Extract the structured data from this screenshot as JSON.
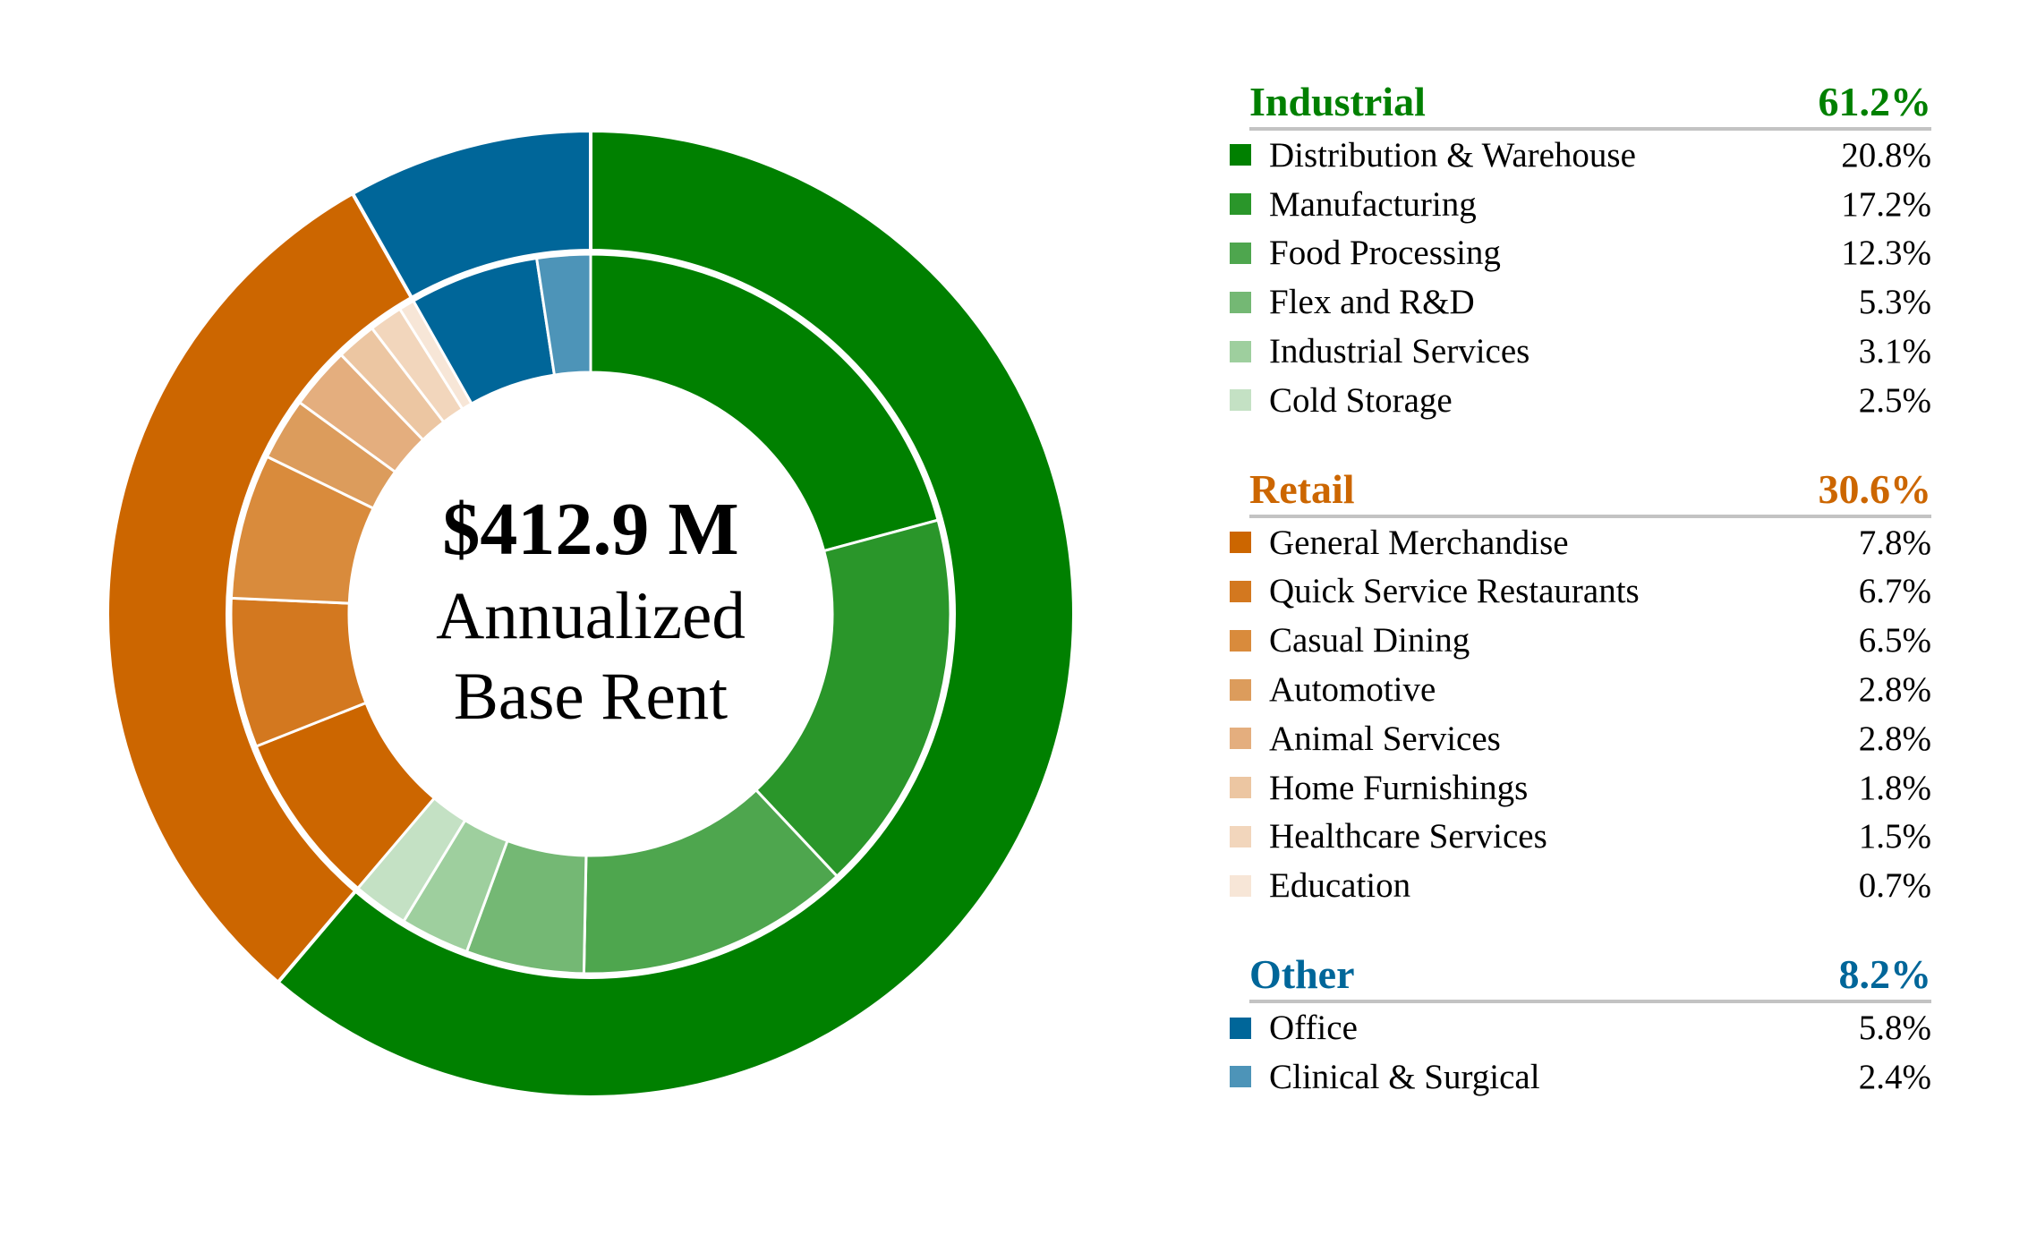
{
  "center": {
    "amount": "$412.9 M",
    "caption_line1": "Annualized",
    "caption_line2": "Base Rent"
  },
  "colors": {
    "industrial": "#008000",
    "retail": "#cc6600",
    "other": "#006699",
    "separator": "#ffffff"
  },
  "chart_data": {
    "type": "pie",
    "subtype": "nested-donut",
    "title": "",
    "unit": "%",
    "outer_ring": [
      {
        "name": "Industrial",
        "value": 61.2,
        "label": "61.2%",
        "color": "#008000"
      },
      {
        "name": "Retail",
        "value": 30.6,
        "label": "30.6%",
        "color": "#cc6600"
      },
      {
        "name": "Other",
        "value": 8.2,
        "label": "8.2%",
        "color": "#006699"
      }
    ],
    "groups": [
      {
        "name": "Industrial",
        "total_label": "61.2%",
        "color": "#008000",
        "items": [
          {
            "name": "Distribution & Warehouse",
            "value": 20.8,
            "label": "20.8%",
            "color": "#008000"
          },
          {
            "name": "Manufacturing",
            "value": 17.2,
            "label": "17.2%",
            "color": "#2a962a"
          },
          {
            "name": "Food Processing",
            "value": 12.3,
            "label": "12.3%",
            "color": "#4ea64e"
          },
          {
            "name": "Flex and R&D",
            "value": 5.3,
            "label": "5.3%",
            "color": "#74b874"
          },
          {
            "name": "Industrial Services",
            "value": 3.1,
            "label": "3.1%",
            "color": "#9ecf9e"
          },
          {
            "name": "Cold Storage",
            "value": 2.5,
            "label": "2.5%",
            "color": "#c4e1c4"
          }
        ]
      },
      {
        "name": "Retail",
        "total_label": "30.6%",
        "color": "#cc6600",
        "items": [
          {
            "name": "General Merchandise",
            "value": 7.8,
            "label": "7.8%",
            "color": "#cc6600"
          },
          {
            "name": "Quick Service Restaurants",
            "value": 6.7,
            "label": "6.7%",
            "color": "#d3781f"
          },
          {
            "name": "Casual Dining",
            "value": 6.5,
            "label": "6.5%",
            "color": "#d98b3c"
          },
          {
            "name": "Automotive",
            "value": 2.8,
            "label": "2.8%",
            "color": "#dc9c5c"
          },
          {
            "name": "Animal Services",
            "value": 2.8,
            "label": "2.8%",
            "color": "#e4ae7e"
          },
          {
            "name": "Home Furnishings",
            "value": 1.8,
            "label": "1.8%",
            "color": "#ecc6a2"
          },
          {
            "name": "Healthcare Services",
            "value": 1.5,
            "label": "1.5%",
            "color": "#f2d6bc"
          },
          {
            "name": "Education",
            "value": 0.7,
            "label": "0.7%",
            "color": "#f7e6d7"
          }
        ]
      },
      {
        "name": "Other",
        "total_label": "8.2%",
        "color": "#006699",
        "items": [
          {
            "name": "Office",
            "value": 5.8,
            "label": "5.8%",
            "color": "#006699"
          },
          {
            "name": "Clinical & Surgical",
            "value": 2.4,
            "label": "2.4%",
            "color": "#4d94b8"
          }
        ]
      }
    ]
  }
}
